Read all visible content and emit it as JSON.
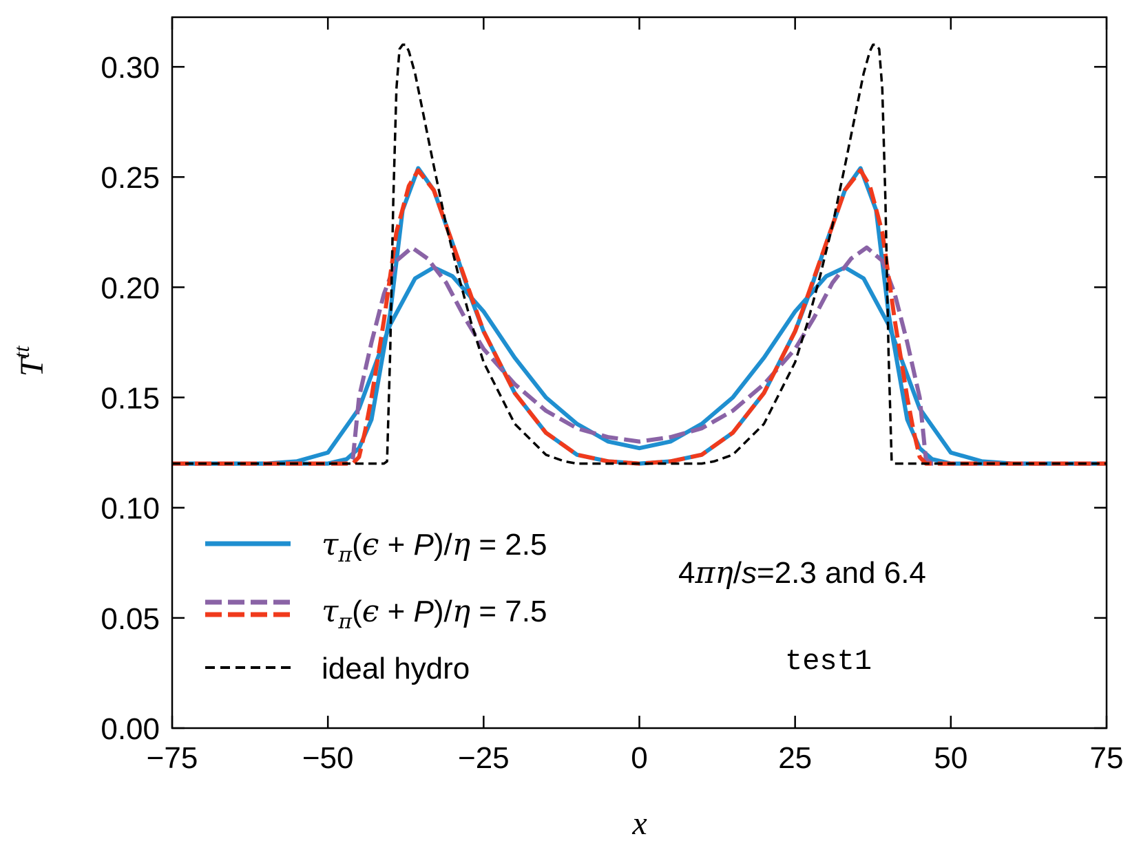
{
  "chart_data": {
    "type": "line",
    "title": "",
    "xlabel": "x",
    "ylabel": "T^tt",
    "xlim": [
      -75,
      75
    ],
    "ylim": [
      0.0,
      0.32
    ],
    "xticks": [
      -75,
      -50,
      -25,
      0,
      25,
      50,
      75
    ],
    "xtick_labels": [
      "−75",
      "−50",
      "−25",
      "0",
      "25",
      "50",
      "75"
    ],
    "yticks": [
      0.0,
      0.05,
      0.1,
      0.15,
      0.2,
      0.25,
      0.3
    ],
    "ytick_labels": [
      "0.00",
      "0.05",
      "0.10",
      "0.15",
      "0.20",
      "0.25",
      "0.30"
    ],
    "grid": false,
    "legend_position": "lower-left",
    "annotations": [
      "4πη/s=2.3 and 6.4",
      "test1"
    ],
    "legend": [
      {
        "label": "τπ(ϵ + P)/η = 2.5",
        "style": "solid",
        "colors": [
          "#1f8fd0"
        ]
      },
      {
        "label": "τπ(ϵ + P)/η = 7.5",
        "style": "dashed",
        "colors": [
          "#8a63a6",
          "#f03a1c"
        ]
      },
      {
        "label": "ideal hydro",
        "style": "dashed",
        "colors": [
          "#000000"
        ]
      }
    ],
    "series": [
      {
        "name": "tau=2.5, 4pi eta/s=6.4",
        "color": "#1f8fd0",
        "style": "solid",
        "width": 6,
        "x": [
          -75,
          -60,
          -55,
          -50,
          -45,
          -40,
          -36,
          -33,
          -30,
          -25,
          -20,
          -15,
          -10,
          -5,
          0,
          5,
          10,
          15,
          20,
          25,
          30,
          33,
          36,
          40,
          45,
          50,
          55,
          60,
          75
        ],
        "y": [
          0.12,
          0.12,
          0.121,
          0.125,
          0.145,
          0.183,
          0.204,
          0.209,
          0.205,
          0.189,
          0.168,
          0.15,
          0.138,
          0.13,
          0.127,
          0.13,
          0.138,
          0.15,
          0.168,
          0.189,
          0.205,
          0.209,
          0.204,
          0.183,
          0.145,
          0.125,
          0.121,
          0.12,
          0.12
        ]
      },
      {
        "name": "tau=2.5, 4pi eta/s=2.3",
        "color": "#1f8fd0",
        "style": "solid",
        "width": 6,
        "x": [
          -75,
          -50,
          -47,
          -45,
          -43,
          -40,
          -38,
          -35.5,
          -33,
          -30,
          -27,
          -25,
          -20,
          -15,
          -10,
          -5,
          0,
          5,
          10,
          15,
          20,
          25,
          27,
          30,
          33,
          35.5,
          38,
          40,
          43,
          45,
          47,
          50,
          75
        ],
        "y": [
          0.12,
          0.12,
          0.122,
          0.127,
          0.14,
          0.188,
          0.235,
          0.254,
          0.244,
          0.22,
          0.195,
          0.18,
          0.152,
          0.134,
          0.124,
          0.121,
          0.12,
          0.121,
          0.124,
          0.134,
          0.152,
          0.18,
          0.195,
          0.22,
          0.244,
          0.254,
          0.235,
          0.188,
          0.14,
          0.127,
          0.122,
          0.12,
          0.12
        ]
      },
      {
        "name": "tau=7.5, 4pi eta/s=6.4",
        "color": "#8a63a6",
        "style": "dashed",
        "width": 6,
        "x": [
          -75,
          -47,
          -46,
          -45,
          -43,
          -41,
          -39,
          -36.5,
          -34,
          -31,
          -28,
          -25,
          -20,
          -15,
          -10,
          -5,
          0,
          5,
          10,
          15,
          20,
          25,
          28,
          31,
          34,
          36.5,
          39,
          41,
          43,
          45,
          46,
          47,
          75
        ],
        "y": [
          0.12,
          0.12,
          0.122,
          0.15,
          0.175,
          0.197,
          0.212,
          0.218,
          0.213,
          0.202,
          0.186,
          0.172,
          0.156,
          0.144,
          0.136,
          0.132,
          0.13,
          0.132,
          0.136,
          0.144,
          0.156,
          0.172,
          0.186,
          0.202,
          0.213,
          0.218,
          0.212,
          0.197,
          0.175,
          0.15,
          0.122,
          0.12,
          0.12
        ]
      },
      {
        "name": "tau=7.5, 4pi eta/s=2.3",
        "color": "#f03a1c",
        "style": "dashed",
        "width": 6,
        "x": [
          -75,
          -46,
          -45,
          -44,
          -43,
          -41,
          -39,
          -37,
          -35.5,
          -33,
          -30,
          -27,
          -25,
          -20,
          -15,
          -10,
          -5,
          0,
          5,
          10,
          15,
          20,
          25,
          27,
          30,
          33,
          35.5,
          37,
          39,
          41,
          43,
          44,
          45,
          46,
          75
        ],
        "y": [
          0.12,
          0.12,
          0.123,
          0.135,
          0.15,
          0.185,
          0.225,
          0.246,
          0.253,
          0.244,
          0.22,
          0.196,
          0.18,
          0.152,
          0.134,
          0.124,
          0.121,
          0.12,
          0.121,
          0.124,
          0.134,
          0.152,
          0.18,
          0.196,
          0.22,
          0.244,
          0.253,
          0.246,
          0.225,
          0.185,
          0.15,
          0.135,
          0.123,
          0.12,
          0.12
        ]
      },
      {
        "name": "ideal hydro",
        "color": "#000000",
        "style": "dashed",
        "width": 3.5,
        "x": [
          -75,
          -41,
          -40.5,
          -40,
          -39.5,
          -39,
          -38.5,
          -38,
          -37.5,
          -37,
          -36,
          -35,
          -33,
          -31,
          -29,
          -27,
          -25,
          -20,
          -15,
          -12,
          -10,
          -5,
          0,
          5,
          10,
          12,
          15,
          20,
          25,
          27,
          29,
          31,
          33,
          35,
          36,
          37,
          37.5,
          38,
          38.5,
          39,
          39.5,
          40,
          40.5,
          41,
          75
        ],
        "y": [
          0.12,
          0.12,
          0.121,
          0.17,
          0.24,
          0.29,
          0.308,
          0.31,
          0.31,
          0.307,
          0.297,
          0.283,
          0.255,
          0.228,
          0.205,
          0.184,
          0.166,
          0.138,
          0.124,
          0.121,
          0.12,
          0.12,
          0.12,
          0.12,
          0.12,
          0.121,
          0.124,
          0.138,
          0.166,
          0.184,
          0.205,
          0.228,
          0.255,
          0.283,
          0.297,
          0.307,
          0.31,
          0.31,
          0.308,
          0.29,
          0.24,
          0.17,
          0.121,
          0.12,
          0.12
        ]
      }
    ]
  }
}
